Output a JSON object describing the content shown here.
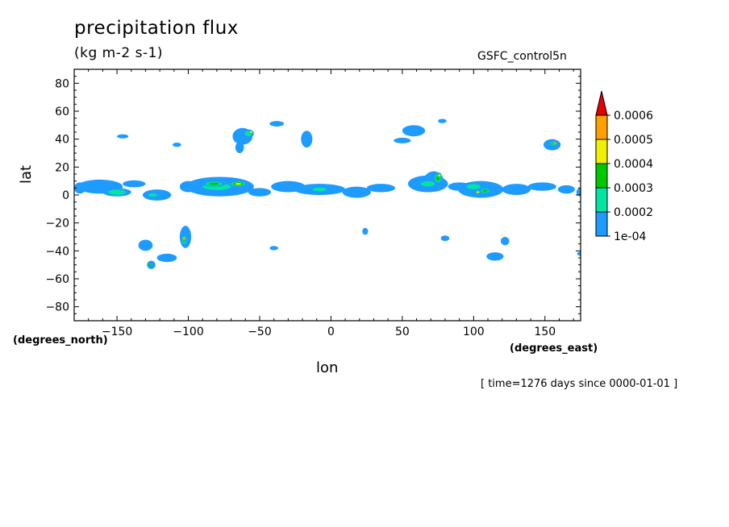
{
  "header": {
    "title": "precipitation flux",
    "units": "(kg m-2 s-1)",
    "run_name": "GSFC_control5n",
    "time_note": "[ time=1276 days since 0000-01-01 ]"
  },
  "chart_data": {
    "type": "contour",
    "title": "precipitation flux",
    "subtitle": "(kg m-2 s-1)",
    "xlabel": "lon",
    "xlabel_units": "(degrees_east)",
    "ylabel": "lat",
    "ylabel_units": "(degrees_north)",
    "xlim": [
      -180,
      175
    ],
    "ylim": [
      -90,
      90
    ],
    "x_ticks": [
      -150,
      -100,
      -50,
      0,
      50,
      100,
      150
    ],
    "y_ticks": [
      80,
      60,
      40,
      20,
      0,
      -20,
      -40,
      -60,
      -80
    ],
    "levels": [
      0.0001,
      0.0002,
      0.0003,
      0.0004,
      0.0005,
      0.0006
    ],
    "colorbar_labels": [
      "1e-04",
      "0.0002",
      "0.0003",
      "0.0004",
      "0.0005",
      "0.0006"
    ],
    "colorbar_colors": [
      "#1e9bff",
      "#00e6a0",
      "#00c800",
      "#f0f000",
      "#ffa000",
      "#e60000"
    ],
    "grid": false,
    "regions": [
      {
        "lon": -176,
        "lat": 5,
        "rx": 4,
        "ry": 4,
        "level": 1
      },
      {
        "lon": -162,
        "lat": 6,
        "rx": 16,
        "ry": 5,
        "level": 1
      },
      {
        "lon": -150,
        "lat": 2,
        "rx": 10,
        "ry": 3,
        "level": 2
      },
      {
        "lon": -138,
        "lat": 8,
        "rx": 8,
        "ry": 2.5,
        "level": 1
      },
      {
        "lon": -122,
        "lat": 0,
        "rx": 10,
        "ry": 4,
        "level": 1
      },
      {
        "lon": -125,
        "lat": 0,
        "rx": 5,
        "ry": 2,
        "level": 2
      },
      {
        "lon": -100,
        "lat": 6,
        "rx": 6,
        "ry": 4,
        "level": 1
      },
      {
        "lon": -78,
        "lat": 6,
        "rx": 24,
        "ry": 7,
        "level": 1
      },
      {
        "lon": -80,
        "lat": 6,
        "rx": 16,
        "ry": 4,
        "level": 2
      },
      {
        "lon": -82,
        "lat": 8,
        "rx": 8,
        "ry": 2,
        "level": 3
      },
      {
        "lon": -65,
        "lat": 8,
        "rx": 6,
        "ry": 2,
        "level": 4
      },
      {
        "lon": -50,
        "lat": 2,
        "rx": 8,
        "ry": 3,
        "level": 1
      },
      {
        "lon": -30,
        "lat": 6,
        "rx": 12,
        "ry": 4,
        "level": 1
      },
      {
        "lon": -8,
        "lat": 4,
        "rx": 18,
        "ry": 4,
        "level": 1
      },
      {
        "lon": -8,
        "lat": 4,
        "rx": 8,
        "ry": 2,
        "level": 2
      },
      {
        "lon": 18,
        "lat": 2,
        "rx": 10,
        "ry": 4,
        "level": 1
      },
      {
        "lon": 35,
        "lat": 5,
        "rx": 10,
        "ry": 3,
        "level": 1
      },
      {
        "lon": 68,
        "lat": 8,
        "rx": 14,
        "ry": 6,
        "level": 1
      },
      {
        "lon": 72,
        "lat": 10,
        "rx": 7,
        "ry": 7,
        "level": 1
      },
      {
        "lon": 68,
        "lat": 8,
        "rx": 8,
        "ry": 3,
        "level": 2
      },
      {
        "lon": 75,
        "lat": 12,
        "rx": 3,
        "ry": 4,
        "level": 3
      },
      {
        "lon": 76,
        "lat": 14,
        "rx": 1.5,
        "ry": 2,
        "level": 4
      },
      {
        "lon": 90,
        "lat": 6,
        "rx": 8,
        "ry": 3,
        "level": 1
      },
      {
        "lon": 105,
        "lat": 4,
        "rx": 16,
        "ry": 6,
        "level": 1
      },
      {
        "lon": 100,
        "lat": 6,
        "rx": 8,
        "ry": 3,
        "level": 2
      },
      {
        "lon": 108,
        "lat": 3,
        "rx": 4,
        "ry": 2,
        "level": 3
      },
      {
        "lon": 103,
        "lat": 2,
        "rx": 2,
        "ry": 1.2,
        "level": 4
      },
      {
        "lon": 130,
        "lat": 4,
        "rx": 10,
        "ry": 4,
        "level": 1
      },
      {
        "lon": 148,
        "lat": 6,
        "rx": 10,
        "ry": 3,
        "level": 1
      },
      {
        "lon": 165,
        "lat": 4,
        "rx": 6,
        "ry": 3,
        "level": 1
      },
      {
        "lon": 175,
        "lat": 2,
        "rx": 3,
        "ry": 3,
        "level": 1
      },
      {
        "lon": -62,
        "lat": 42,
        "rx": 7,
        "ry": 6,
        "level": 1
      },
      {
        "lon": -58,
        "lat": 44,
        "rx": 4,
        "ry": 3,
        "level": 2
      },
      {
        "lon": -56,
        "lat": 45,
        "rx": 1.5,
        "ry": 1.2,
        "level": 4
      },
      {
        "lon": -64,
        "lat": 34,
        "rx": 3,
        "ry": 4,
        "level": 1
      },
      {
        "lon": -38,
        "lat": 51,
        "rx": 5,
        "ry": 2,
        "level": 1
      },
      {
        "lon": -17,
        "lat": 40,
        "rx": 4,
        "ry": 6,
        "level": 1
      },
      {
        "lon": -146,
        "lat": 42,
        "rx": 4,
        "ry": 1.5,
        "level": 1
      },
      {
        "lon": -108,
        "lat": 36,
        "rx": 3,
        "ry": 1.5,
        "level": 1
      },
      {
        "lon": 58,
        "lat": 46,
        "rx": 8,
        "ry": 4,
        "level": 1
      },
      {
        "lon": 50,
        "lat": 39,
        "rx": 6,
        "ry": 2,
        "level": 1
      },
      {
        "lon": 78,
        "lat": 53,
        "rx": 3,
        "ry": 1.5,
        "level": 1
      },
      {
        "lon": 155,
        "lat": 36,
        "rx": 6,
        "ry": 4,
        "level": 1
      },
      {
        "lon": 156,
        "lat": 37,
        "rx": 3,
        "ry": 2,
        "level": 3
      },
      {
        "lon": 157,
        "lat": 37,
        "rx": 2,
        "ry": 1,
        "level": 5
      },
      {
        "lon": -130,
        "lat": -36,
        "rx": 5,
        "ry": 4,
        "level": 1
      },
      {
        "lon": -126,
        "lat": -50,
        "rx": 3,
        "ry": 3,
        "level": 1
      },
      {
        "lon": -127,
        "lat": -50,
        "rx": 1.5,
        "ry": 1.2,
        "level": 3
      },
      {
        "lon": -102,
        "lat": -30,
        "rx": 4,
        "ry": 8,
        "level": 1
      },
      {
        "lon": -103,
        "lat": -32,
        "rx": 2,
        "ry": 4,
        "level": 3
      },
      {
        "lon": -103,
        "lat": -31,
        "rx": 1,
        "ry": 2,
        "level": 5
      },
      {
        "lon": -115,
        "lat": -45,
        "rx": 7,
        "ry": 3,
        "level": 1
      },
      {
        "lon": -40,
        "lat": -38,
        "rx": 3,
        "ry": 1.5,
        "level": 1
      },
      {
        "lon": 24,
        "lat": -26,
        "rx": 2,
        "ry": 2.5,
        "level": 1
      },
      {
        "lon": 80,
        "lat": -31,
        "rx": 3,
        "ry": 2,
        "level": 1
      },
      {
        "lon": 122,
        "lat": -33,
        "rx": 3,
        "ry": 3,
        "level": 1
      },
      {
        "lon": 115,
        "lat": -44,
        "rx": 6,
        "ry": 3,
        "level": 1
      },
      {
        "lon": 175,
        "lat": -42,
        "rx": 2.5,
        "ry": 1.5,
        "level": 1
      }
    ]
  }
}
